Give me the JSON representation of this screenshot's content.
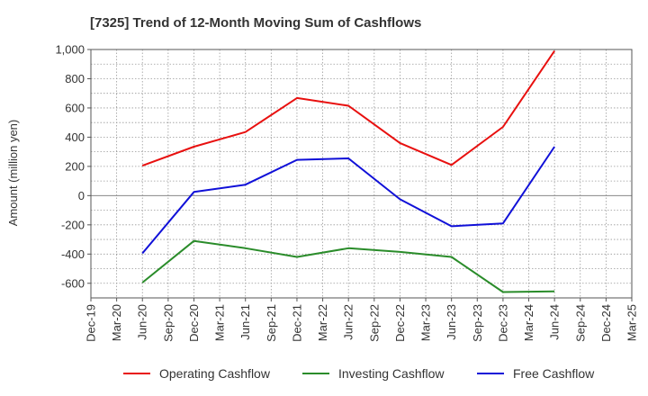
{
  "chart_data": {
    "type": "line",
    "title": "[7325]  Trend of 12-Month Moving Sum of Cashflows",
    "xlabel": "",
    "ylabel": "Amount (million yen)",
    "categories": [
      "Dec-19",
      "Mar-20",
      "Jun-20",
      "Sep-20",
      "Dec-20",
      "Mar-21",
      "Jun-21",
      "Sep-21",
      "Dec-21",
      "Mar-22",
      "Jun-22",
      "Sep-22",
      "Dec-22",
      "Mar-23",
      "Jun-23",
      "Sep-23",
      "Dec-23",
      "Mar-24",
      "Jun-24",
      "Sep-24",
      "Dec-24",
      "Mar-25"
    ],
    "ylim": [
      -700,
      1000
    ],
    "yticks": [
      -600,
      -400,
      -200,
      0,
      200,
      400,
      600,
      800,
      1000
    ],
    "ytick_labels": [
      "-600",
      "-400",
      "-200",
      "0",
      "200",
      "400",
      "600",
      "800",
      "1,000"
    ],
    "grid": true,
    "legend_position": "bottom",
    "series": [
      {
        "name": "Operating Cashflow",
        "color": "#e8100f",
        "values": [
          null,
          null,
          205,
          null,
          335,
          null,
          435,
          null,
          668,
          null,
          615,
          null,
          360,
          null,
          210,
          null,
          470,
          null,
          990,
          null,
          null,
          null
        ]
      },
      {
        "name": "Investing Cashflow",
        "color": "#2a8c2a",
        "values": [
          null,
          null,
          -595,
          null,
          -310,
          null,
          -360,
          null,
          -420,
          null,
          -360,
          null,
          -385,
          null,
          -420,
          null,
          -660,
          null,
          -655,
          null,
          null,
          null
        ]
      },
      {
        "name": "Free Cashflow",
        "color": "#1010d8",
        "values": [
          null,
          null,
          -395,
          null,
          25,
          null,
          75,
          null,
          245,
          null,
          255,
          null,
          -25,
          null,
          -210,
          null,
          -190,
          null,
          335,
          null,
          null,
          null
        ]
      }
    ]
  }
}
